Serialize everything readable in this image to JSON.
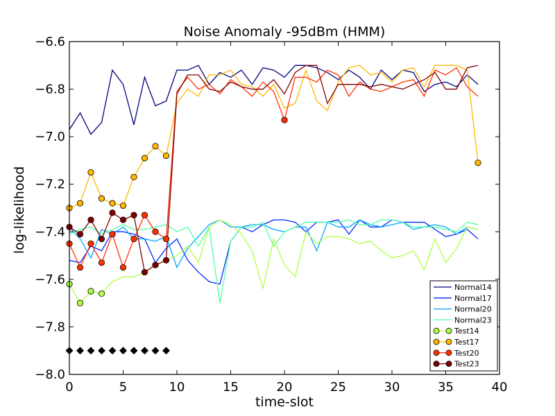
{
  "chart_data": {
    "type": "line",
    "title": "Noise Anomaly -95dBm (HMM)",
    "xlabel": "time-slot",
    "ylabel": "log-likelihood",
    "xlim": [
      0,
      40
    ],
    "ylim": [
      -8.0,
      -6.6
    ],
    "xticks": [
      0,
      5,
      10,
      15,
      20,
      25,
      30,
      35,
      40
    ],
    "xtick_labels": [
      "0",
      "5",
      "10",
      "15",
      "20",
      "25",
      "30",
      "35",
      "40"
    ],
    "yticks": [
      -6.6,
      -6.8,
      -7.0,
      -7.2,
      -7.4,
      -7.6,
      -7.8,
      -8.0
    ],
    "ytick_labels": [
      "−6.6",
      "−6.8",
      "−7.0",
      "−7.2",
      "−7.4",
      "−7.6",
      "−7.8",
      "−8.0"
    ],
    "legend_position": "bottom-right",
    "series": [
      {
        "name": "Normal14",
        "color": "#00007f",
        "style": "line",
        "x": [
          0,
          1,
          2,
          3,
          4,
          5,
          6,
          7,
          8,
          9,
          10,
          11,
          12,
          13,
          14,
          15,
          16,
          17,
          18,
          19,
          20,
          21,
          22,
          23,
          24,
          25,
          26,
          27,
          28,
          29,
          30,
          31,
          32,
          33,
          34,
          35,
          36,
          37,
          38
        ],
        "y": [
          -6.97,
          -6.9,
          -6.99,
          -6.94,
          -6.72,
          -6.78,
          -6.95,
          -6.75,
          -6.87,
          -6.85,
          -6.72,
          -6.72,
          -6.7,
          -6.78,
          -6.73,
          -6.75,
          -6.72,
          -6.78,
          -6.71,
          -6.72,
          -6.75,
          -6.7,
          -6.7,
          -6.71,
          -6.73,
          -6.76,
          -6.72,
          -6.75,
          -6.8,
          -6.72,
          -6.76,
          -6.72,
          -6.73,
          -6.81,
          -6.78,
          -6.77,
          -6.79,
          -6.74,
          -6.78
        ]
      },
      {
        "name": "Normal17",
        "color": "#0026ff",
        "style": "line",
        "x": [
          0,
          1,
          2,
          3,
          4,
          5,
          6,
          7,
          8,
          9,
          10,
          11,
          12,
          13,
          14,
          15,
          16,
          17,
          18,
          19,
          20,
          21,
          22,
          23,
          24,
          25,
          26,
          27,
          28,
          29,
          30,
          31,
          32,
          33,
          34,
          35,
          36,
          37,
          38
        ],
        "y": [
          -7.52,
          -7.53,
          -7.46,
          -7.48,
          -7.4,
          -7.4,
          -7.41,
          -7.43,
          -7.53,
          -7.47,
          -7.43,
          -7.52,
          -7.57,
          -7.61,
          -7.62,
          -7.44,
          -7.38,
          -7.4,
          -7.37,
          -7.35,
          -7.35,
          -7.36,
          -7.4,
          -7.36,
          -7.36,
          -7.35,
          -7.41,
          -7.35,
          -7.38,
          -7.38,
          -7.35,
          -7.36,
          -7.36,
          -7.36,
          -7.39,
          -7.42,
          -7.41,
          -7.39,
          -7.43
        ]
      },
      {
        "name": "Normal20",
        "color": "#00a4ff",
        "style": "line",
        "x": [
          0,
          1,
          2,
          3,
          4,
          5,
          6,
          7,
          8,
          9,
          10,
          11,
          12,
          13,
          14,
          15,
          16,
          17,
          18,
          19,
          20,
          21,
          22,
          23,
          24,
          25,
          26,
          27,
          28,
          29,
          30,
          31,
          32,
          33,
          34,
          35,
          36,
          37,
          38
        ],
        "y": [
          -7.38,
          -7.43,
          -7.51,
          -7.39,
          -7.41,
          -7.38,
          -7.43,
          -7.43,
          -7.44,
          -7.42,
          -7.55,
          -7.47,
          -7.42,
          -7.37,
          -7.35,
          -7.38,
          -7.38,
          -7.37,
          -7.37,
          -7.39,
          -7.4,
          -7.38,
          -7.38,
          -7.48,
          -7.36,
          -7.38,
          -7.38,
          -7.35,
          -7.37,
          -7.38,
          -7.37,
          -7.36,
          -7.39,
          -7.38,
          -7.37,
          -7.38,
          -7.41,
          -7.38,
          -7.39
        ]
      },
      {
        "name": "Normal23",
        "color": "#50ffa6",
        "style": "line",
        "x": [
          0,
          1,
          2,
          3,
          4,
          5,
          6,
          7,
          8,
          9,
          10,
          11,
          12,
          13,
          14,
          15,
          16,
          17,
          18,
          19,
          20,
          21,
          22,
          23,
          24,
          25,
          26,
          27,
          28,
          29,
          30,
          31,
          32,
          33,
          34,
          35,
          36,
          37,
          38
        ],
        "y": [
          -7.41,
          -7.39,
          -7.38,
          -7.41,
          -7.39,
          -7.37,
          -7.39,
          -7.39,
          -7.38,
          -7.37,
          -7.4,
          -7.38,
          -7.46,
          -7.38,
          -7.7,
          -7.44,
          -7.38,
          -7.38,
          -7.36,
          -7.46,
          -7.4,
          -7.38,
          -7.36,
          -7.36,
          -7.36,
          -7.36,
          -7.35,
          -7.37,
          -7.37,
          -7.35,
          -7.35,
          -7.36,
          -7.38,
          -7.38,
          -7.38,
          -7.39,
          -7.4,
          -7.36,
          -7.37
        ]
      },
      {
        "name": "Test14",
        "color": "#b0ff46",
        "style": "line-marker",
        "marker_points": [
          [
            0,
            -7.62
          ],
          [
            1,
            -7.7
          ],
          [
            2,
            -7.65
          ],
          [
            3,
            -7.66
          ]
        ],
        "x": [
          0,
          1,
          2,
          3,
          4,
          5,
          6,
          7,
          8,
          9,
          10,
          11,
          12,
          13,
          14,
          15,
          16,
          17,
          18,
          19,
          20,
          21,
          22,
          23,
          24,
          25,
          26,
          27,
          28,
          29,
          30,
          31,
          32,
          33,
          34,
          35,
          36,
          37,
          38
        ],
        "y": [
          -7.62,
          -7.7,
          -7.65,
          -7.66,
          -7.61,
          -7.59,
          -7.59,
          -7.57,
          -7.54,
          -7.52,
          -7.5,
          -7.46,
          -7.53,
          -7.38,
          -7.35,
          -7.37,
          -7.41,
          -7.48,
          -7.64,
          -7.43,
          -7.54,
          -7.59,
          -7.4,
          -7.45,
          -7.42,
          -7.42,
          -7.43,
          -7.45,
          -7.44,
          -7.48,
          -7.51,
          -7.5,
          -7.48,
          -7.56,
          -7.43,
          -7.53,
          -7.47,
          -7.38,
          -7.39
        ]
      },
      {
        "name": "Test17",
        "color": "#ffb700",
        "style": "line-marker",
        "marker_points": [
          [
            0,
            -7.3
          ],
          [
            1,
            -7.28
          ],
          [
            2,
            -7.15
          ],
          [
            3,
            -7.26
          ],
          [
            4,
            -7.28
          ],
          [
            5,
            -7.29
          ],
          [
            6,
            -7.17
          ],
          [
            7,
            -7.09
          ],
          [
            8,
            -7.04
          ],
          [
            9,
            -7.08
          ],
          [
            38,
            -7.11
          ]
        ],
        "x": [
          0,
          1,
          2,
          3,
          4,
          5,
          6,
          7,
          8,
          9,
          10,
          11,
          12,
          13,
          14,
          15,
          16,
          17,
          18,
          19,
          20,
          21,
          22,
          23,
          24,
          25,
          26,
          27,
          28,
          29,
          30,
          31,
          32,
          33,
          34,
          35,
          36,
          37,
          38
        ],
        "y": [
          -7.3,
          -7.28,
          -7.15,
          -7.26,
          -7.28,
          -7.29,
          -7.17,
          -7.09,
          -7.04,
          -7.08,
          -6.86,
          -6.8,
          -6.83,
          -6.74,
          -6.74,
          -6.72,
          -6.78,
          -6.79,
          -6.83,
          -6.78,
          -6.88,
          -6.86,
          -6.72,
          -6.85,
          -6.89,
          -6.77,
          -6.71,
          -6.7,
          -6.74,
          -6.73,
          -6.77,
          -6.72,
          -6.71,
          -6.79,
          -6.7,
          -6.7,
          -6.7,
          -6.72,
          -7.11
        ]
      },
      {
        "name": "Test20",
        "color": "#ff3000",
        "style": "line-marker",
        "marker_points": [
          [
            0,
            -7.45
          ],
          [
            1,
            -7.55
          ],
          [
            2,
            -7.45
          ],
          [
            3,
            -7.53
          ],
          [
            4,
            -7.41
          ],
          [
            5,
            -7.55
          ],
          [
            6,
            -7.43
          ],
          [
            7,
            -7.33
          ],
          [
            8,
            -7.4
          ],
          [
            9,
            -7.43
          ],
          [
            20,
            -6.93
          ]
        ],
        "x": [
          0,
          1,
          2,
          3,
          4,
          5,
          6,
          7,
          8,
          9,
          10,
          11,
          12,
          13,
          14,
          15,
          16,
          17,
          18,
          19,
          20,
          21,
          22,
          23,
          24,
          25,
          26,
          27,
          28,
          29,
          30,
          31,
          32,
          33,
          34,
          35,
          36,
          37,
          38
        ],
        "y": [
          -7.45,
          -7.55,
          -7.45,
          -7.53,
          -7.41,
          -7.55,
          -7.43,
          -7.33,
          -7.4,
          -7.43,
          -6.81,
          -6.75,
          -6.8,
          -6.78,
          -6.82,
          -6.76,
          -6.79,
          -6.83,
          -6.77,
          -6.81,
          -6.93,
          -6.75,
          -6.75,
          -6.77,
          -6.72,
          -6.74,
          -6.83,
          -6.77,
          -6.8,
          -6.81,
          -6.79,
          -6.77,
          -6.76,
          -6.83,
          -6.72,
          -6.74,
          -6.71,
          -6.79,
          -6.83
        ]
      },
      {
        "name": "Test23",
        "color": "#7f0000",
        "style": "line-marker",
        "marker_points": [
          [
            0,
            -7.38
          ],
          [
            1,
            -7.41
          ],
          [
            2,
            -7.35
          ],
          [
            3,
            -7.43
          ],
          [
            4,
            -7.32
          ],
          [
            5,
            -7.35
          ],
          [
            6,
            -7.33
          ],
          [
            7,
            -7.57
          ],
          [
            8,
            -7.54
          ],
          [
            9,
            -7.52
          ]
        ],
        "x": [
          0,
          1,
          2,
          3,
          4,
          5,
          6,
          7,
          8,
          9,
          10,
          11,
          12,
          13,
          14,
          15,
          16,
          17,
          18,
          19,
          20,
          21,
          22,
          23,
          24,
          25,
          26,
          27,
          28,
          29,
          30,
          31,
          32,
          33,
          34,
          35,
          36,
          37,
          38
        ],
        "y": [
          -7.38,
          -7.41,
          -7.35,
          -7.43,
          -7.32,
          -7.35,
          -7.33,
          -7.57,
          -7.54,
          -7.52,
          -6.82,
          -6.74,
          -6.74,
          -6.8,
          -6.81,
          -6.77,
          -6.79,
          -6.8,
          -6.8,
          -6.76,
          -6.82,
          -6.73,
          -6.7,
          -6.7,
          -6.86,
          -6.78,
          -6.78,
          -6.78,
          -6.79,
          -6.78,
          -6.79,
          -6.8,
          -6.78,
          -6.76,
          -6.73,
          -6.8,
          -6.8,
          -6.71,
          -6.7
        ]
      }
    ],
    "anomaly_markers": {
      "color": "#000000",
      "shape": "diamond",
      "x": [
        0,
        1,
        2,
        3,
        4,
        5,
        6,
        7,
        8,
        9
      ],
      "y": -7.9
    }
  }
}
